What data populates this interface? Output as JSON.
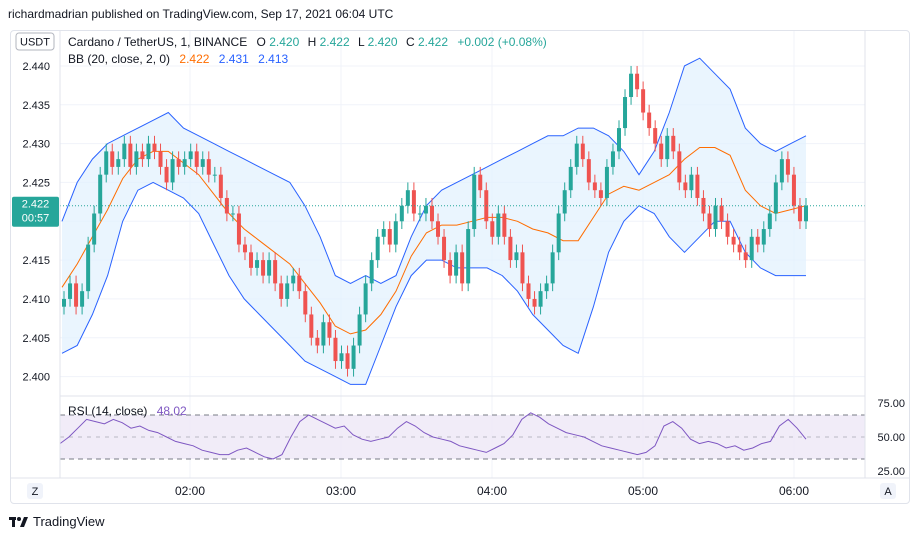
{
  "header": {
    "published_text": "richardmadrian published on TradingView.com, Sep 17, 2021 06:04 UTC"
  },
  "legend": {
    "symbol": "Cardano / TetherUS, 1, BINANCE",
    "o_label": "O",
    "o_value": "2.420",
    "h_label": "H",
    "h_value": "2.422",
    "l_label": "L",
    "l_value": "2.420",
    "c_label": "C",
    "c_value": "2.422",
    "change": "+0.002 (+0.08%)",
    "bb_label": "BB (20, close, 2, 0)",
    "bb_basis": "2.422",
    "bb_upper": "2.431",
    "bb_lower": "2.413",
    "currency": "USDT"
  },
  "price_tag": {
    "price": "2.422",
    "countdown": "00:57"
  },
  "rsi": {
    "label": "RSI (14, close)",
    "value": "48.02"
  },
  "colors": {
    "up": "#26a69a",
    "down": "#ef5350",
    "bb_band": "#2962ff",
    "bb_basis": "#ff6d00",
    "bb_fill": "#e3f2fd",
    "rsi_line": "#7e57c2",
    "rsi_fill": "#ede7f6"
  },
  "footer": {
    "brand": "TradingView"
  },
  "controls": {
    "left": "Z",
    "right": "A"
  },
  "chart_data": {
    "type": "candlestick",
    "price_axis": {
      "min": 2.3975,
      "max": 2.4445,
      "ticks": [
        "2.400",
        "2.405",
        "2.410",
        "2.415",
        "2.420",
        "2.425",
        "2.430",
        "2.435",
        "2.440"
      ]
    },
    "rsi_axis": {
      "ticks": [
        "25.00",
        "50.00",
        "75.00"
      ],
      "band": [
        30,
        70
      ]
    },
    "time_axis": {
      "ticks": [
        "02:00",
        "03:00",
        "04:00",
        "05:00",
        "06:00"
      ]
    },
    "closes": [
      2.41,
      2.412,
      2.409,
      2.411,
      2.417,
      2.421,
      2.426,
      2.429,
      2.427,
      2.428,
      2.43,
      2.427,
      2.429,
      2.428,
      2.43,
      2.429,
      2.427,
      2.425,
      2.428,
      2.427,
      2.428,
      2.429,
      2.427,
      2.428,
      2.426,
      2.426,
      2.423,
      2.421,
      2.421,
      2.417,
      2.416,
      2.414,
      2.415,
      2.413,
      2.415,
      2.412,
      2.41,
      2.412,
      2.413,
      2.411,
      2.408,
      2.405,
      2.404,
      2.407,
      2.405,
      2.402,
      2.403,
      2.401,
      2.404,
      2.408,
      2.412,
      2.415,
      2.418,
      2.419,
      2.417,
      2.42,
      2.422,
      2.424,
      2.421,
      2.421,
      2.422,
      2.42,
      2.418,
      2.415,
      2.413,
      2.416,
      2.412,
      2.419,
      2.426,
      2.424,
      2.42,
      2.418,
      2.421,
      2.418,
      2.415,
      2.416,
      2.412,
      2.41,
      2.409,
      2.411,
      2.412,
      2.416,
      2.421,
      2.424,
      2.427,
      2.43,
      2.428,
      2.425,
      2.424,
      2.423,
      2.427,
      2.429,
      2.432,
      2.436,
      2.439,
      2.437,
      2.434,
      2.432,
      2.43,
      2.428,
      2.431,
      2.429,
      2.425,
      2.424,
      2.426,
      2.423,
      2.421,
      2.419,
      2.422,
      2.42,
      2.418,
      2.417,
      2.416,
      2.415,
      2.418,
      2.417,
      2.419,
      2.421,
      2.425,
      2.428,
      2.426,
      2.422,
      2.42,
      2.422
    ],
    "bb_upper": [
      2.42,
      2.425,
      2.428,
      2.43,
      2.431,
      2.432,
      2.433,
      2.434,
      2.432,
      2.431,
      2.43,
      2.429,
      2.428,
      2.427,
      2.426,
      2.425,
      2.422,
      2.418,
      2.413,
      2.412,
      2.413,
      2.412,
      2.413,
      2.418,
      2.422,
      2.424,
      2.425,
      2.426,
      2.427,
      2.428,
      2.429,
      2.43,
      2.431,
      2.431,
      2.432,
      2.432,
      2.431,
      2.429,
      2.426,
      2.429,
      2.434,
      2.44,
      2.441,
      2.439,
      2.437,
      2.432,
      2.43,
      2.429,
      2.43,
      2.431
    ],
    "bb_lower": [
      2.403,
      2.404,
      2.408,
      2.413,
      2.42,
      2.424,
      2.425,
      2.424,
      2.423,
      2.421,
      2.417,
      2.413,
      2.41,
      2.408,
      2.406,
      2.404,
      2.402,
      2.401,
      2.4,
      2.399,
      2.399,
      2.404,
      2.409,
      2.413,
      2.415,
      2.415,
      2.414,
      2.414,
      2.414,
      2.413,
      2.411,
      2.408,
      2.406,
      2.404,
      2.403,
      2.409,
      2.416,
      2.42,
      2.422,
      2.421,
      2.418,
      2.416,
      2.418,
      2.42,
      2.42,
      2.416,
      2.414,
      2.413,
      2.413,
      2.413
    ],
    "rsi": [
      44,
      50,
      58,
      66,
      64,
      62,
      66,
      63,
      58,
      60,
      56,
      54,
      50,
      46,
      44,
      42,
      38,
      36,
      34,
      34,
      38,
      40,
      36,
      32,
      30,
      34,
      50,
      64,
      70,
      66,
      62,
      58,
      60,
      52,
      48,
      46,
      48,
      50,
      58,
      64,
      60,
      54,
      50,
      48,
      46,
      42,
      40,
      38,
      36,
      40,
      44,
      52,
      66,
      72,
      68,
      62,
      58,
      54,
      52,
      50,
      46,
      42,
      40,
      38,
      36,
      34,
      36,
      42,
      60,
      64,
      58,
      48,
      44,
      46,
      44,
      40,
      42,
      38,
      40,
      44,
      46,
      60,
      66,
      58,
      48
    ]
  }
}
